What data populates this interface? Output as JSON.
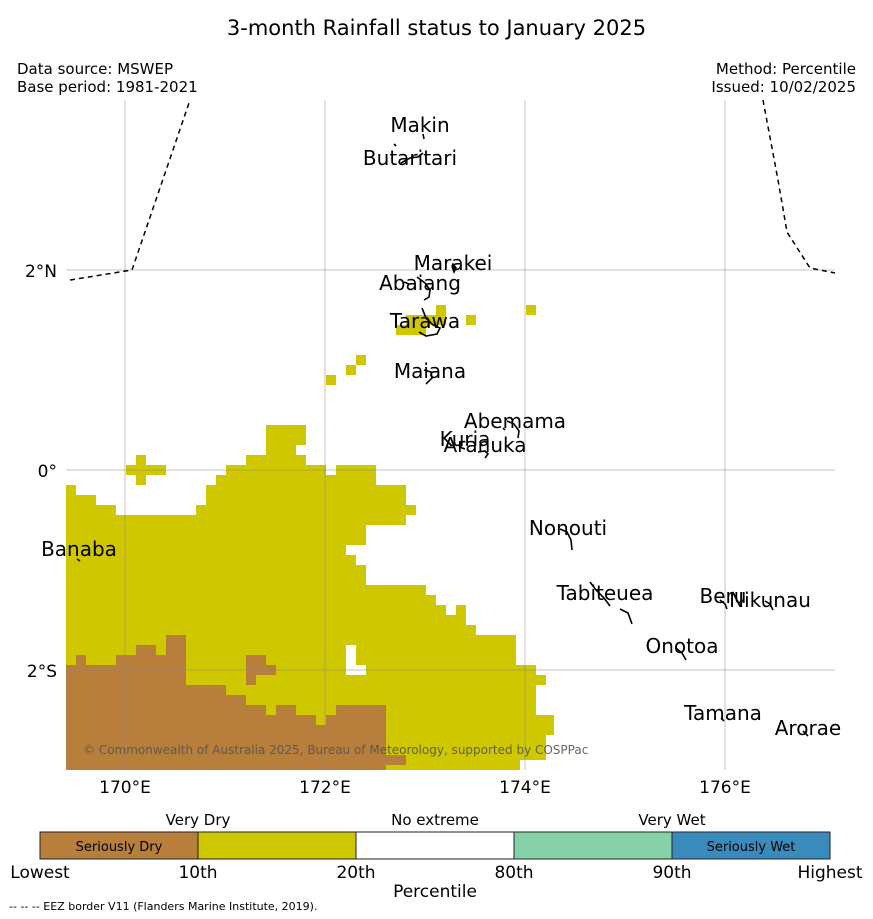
{
  "title": "3-month Rainfall status to January 2025",
  "meta": {
    "data_source": "Data source: MSWEP",
    "base_period": "Base period: 1981-2021",
    "method": "Method: Percentile",
    "issued": "Issued: 10/02/2025"
  },
  "map": {
    "lon_labels": [
      "170°E",
      "172°E",
      "174°E",
      "176°E"
    ],
    "lat_labels": [
      "2°N",
      "0°",
      "2°S"
    ],
    "copyright": "© Commonwealth of Australia 2025, Bureau of Meteorology, supported by COSPPac",
    "places": [
      {
        "name": "Makin",
        "lon": 172.95,
        "lat": 3.38
      },
      {
        "name": "Butaritari",
        "lon": 172.85,
        "lat": 3.05
      },
      {
        "name": "Marakei",
        "lon": 173.28,
        "lat": 2.0
      },
      {
        "name": "Abaiang",
        "lon": 172.95,
        "lat": 1.8
      },
      {
        "name": "Tarawa",
        "lon": 173.0,
        "lat": 1.42
      },
      {
        "name": "Maiana",
        "lon": 173.05,
        "lat": 0.92
      },
      {
        "name": "Abemama",
        "lon": 173.9,
        "lat": 0.42
      },
      {
        "name": "Kuria",
        "lon": 173.4,
        "lat": 0.24
      },
      {
        "name": "Aranuka",
        "lon": 173.6,
        "lat": 0.18
      },
      {
        "name": "Nonouti",
        "lon": 174.43,
        "lat": -0.65
      },
      {
        "name": "Banaba",
        "lon": 169.54,
        "lat": -0.86
      },
      {
        "name": "Tabiteuea",
        "lon": 174.8,
        "lat": -1.3
      },
      {
        "name": "Beru",
        "lon": 175.98,
        "lat": -1.33
      },
      {
        "name": "Nikunau",
        "lon": 176.45,
        "lat": -1.37
      },
      {
        "name": "Onotoa",
        "lon": 175.57,
        "lat": -1.83
      },
      {
        "name": "Tamana",
        "lon": 175.98,
        "lat": -2.5
      },
      {
        "name": "Arorae",
        "lon": 176.83,
        "lat": -2.65
      }
    ],
    "dry_color": "#b87f3c",
    "very_dry_color": "#cfc800"
  },
  "legend": {
    "headers": [
      "Very Dry",
      "No extreme",
      "Very Wet"
    ],
    "categories": [
      {
        "label": "Seriously Dry",
        "color": "#b87f3c"
      },
      {
        "label": "",
        "color": "#cfc800"
      },
      {
        "label": "",
        "color": "#ffffff"
      },
      {
        "label": "",
        "color": "#86d1a8"
      },
      {
        "label": "Seriously Wet",
        "color": "#3a8bbd"
      }
    ],
    "ticks": [
      "Lowest",
      "10th",
      "20th",
      "80th",
      "90th",
      "Highest"
    ],
    "axis_title": "Percentile"
  },
  "footnote": "--  --  -- EEZ border V11 (Flanders Marine Institute, 2019)."
}
